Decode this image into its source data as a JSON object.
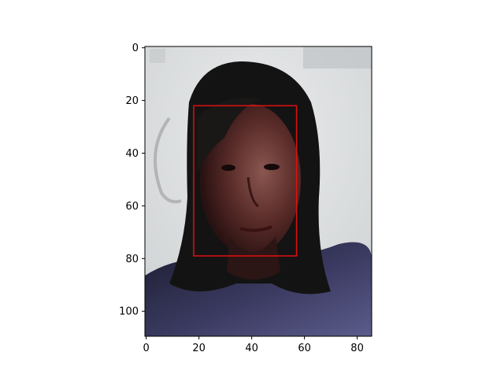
{
  "figure": {
    "image_rows": 110,
    "image_cols": 86
  },
  "chart_data": {
    "type": "image",
    "xlim": [
      0,
      85.5
    ],
    "ylim": [
      110,
      0
    ],
    "x_ticks": [
      0,
      20,
      40,
      60,
      80
    ],
    "y_ticks": [
      0,
      20,
      40,
      60,
      80,
      100
    ],
    "x_tick_labels": [
      "0",
      "20",
      "40",
      "60",
      "80"
    ],
    "y_tick_labels": [
      "0",
      "20",
      "40",
      "60",
      "80",
      "100"
    ],
    "annotations": [
      {
        "type": "rectangle",
        "label": "face-detection-box",
        "x0": 18,
        "y0": 22,
        "x1": 57,
        "y1": 79,
        "color": "#e01010"
      }
    ],
    "grid": false
  },
  "colors": {
    "background_wall": "#d9dbdc",
    "wall_light": "#e7e9ea",
    "hair": "#151414",
    "skin_shadow": "#3a1a1a",
    "skin": "#7a4a45",
    "clothing": "#4a4a78",
    "clothing_dark": "#262642",
    "box_stroke": "#e01010"
  }
}
